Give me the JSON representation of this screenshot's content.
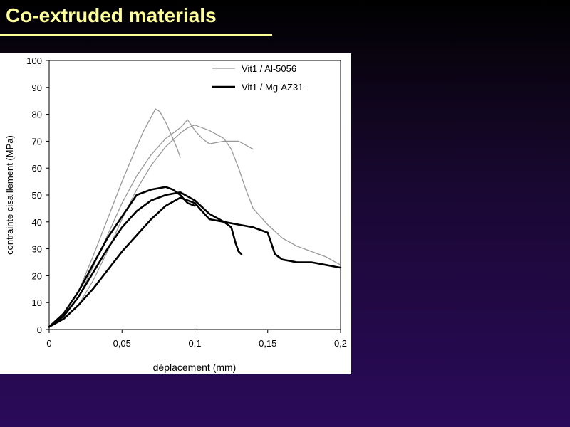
{
  "slide": {
    "title": "Co-extruded materials",
    "accent_color": "#ffff99"
  },
  "chart_data": {
    "type": "line",
    "xlabel": "déplacement (mm)",
    "ylabel": "contrainte cisaillement (MPa)",
    "xlim": [
      0,
      0.2
    ],
    "ylim": [
      0,
      100
    ],
    "x_ticks": [
      0,
      0.05,
      0.1,
      0.15,
      0.2
    ],
    "x_tick_labels": [
      "0",
      "0,05",
      "0,1",
      "0,15",
      "0,2"
    ],
    "y_ticks": [
      0,
      10,
      20,
      30,
      40,
      50,
      60,
      70,
      80,
      90,
      100
    ],
    "y_tick_labels": [
      "0",
      "10",
      "20",
      "30",
      "40",
      "50",
      "60",
      "70",
      "80",
      "90",
      "100"
    ],
    "grid": false,
    "legend_position": "top-right",
    "legend": [
      {
        "label": "Vit1 / Al-5056",
        "color": "#999999",
        "width": 1.3
      },
      {
        "label": "Vit1 / Mg-AZ31",
        "color": "#000000",
        "width": 2.6
      }
    ],
    "series": [
      {
        "group": 0,
        "points": [
          [
            0,
            1
          ],
          [
            0.01,
            6
          ],
          [
            0.02,
            14
          ],
          [
            0.03,
            27
          ],
          [
            0.04,
            41
          ],
          [
            0.05,
            55
          ],
          [
            0.06,
            68
          ],
          [
            0.065,
            74
          ],
          [
            0.07,
            79
          ],
          [
            0.073,
            82
          ],
          [
            0.076,
            81
          ],
          [
            0.08,
            77
          ],
          [
            0.085,
            71
          ],
          [
            0.088,
            67
          ],
          [
            0.09,
            64
          ]
        ]
      },
      {
        "group": 0,
        "points": [
          [
            0,
            1
          ],
          [
            0.01,
            5
          ],
          [
            0.02,
            12
          ],
          [
            0.03,
            23
          ],
          [
            0.04,
            35
          ],
          [
            0.05,
            47
          ],
          [
            0.06,
            57
          ],
          [
            0.07,
            65
          ],
          [
            0.08,
            71
          ],
          [
            0.09,
            75
          ],
          [
            0.095,
            78
          ],
          [
            0.1,
            74
          ],
          [
            0.105,
            71
          ],
          [
            0.11,
            69
          ],
          [
            0.12,
            70
          ],
          [
            0.13,
            70
          ],
          [
            0.14,
            67
          ]
        ]
      },
      {
        "group": 0,
        "points": [
          [
            0,
            1
          ],
          [
            0.01,
            4
          ],
          [
            0.02,
            9
          ],
          [
            0.03,
            18
          ],
          [
            0.04,
            29
          ],
          [
            0.05,
            41
          ],
          [
            0.06,
            52
          ],
          [
            0.07,
            61
          ],
          [
            0.08,
            68
          ],
          [
            0.09,
            73
          ],
          [
            0.095,
            75
          ],
          [
            0.1,
            76
          ],
          [
            0.11,
            74
          ],
          [
            0.12,
            71
          ],
          [
            0.125,
            67
          ],
          [
            0.13,
            60
          ],
          [
            0.135,
            52
          ],
          [
            0.14,
            45
          ],
          [
            0.15,
            39
          ],
          [
            0.16,
            34
          ],
          [
            0.17,
            31
          ],
          [
            0.18,
            29
          ],
          [
            0.19,
            27
          ],
          [
            0.2,
            24
          ]
        ]
      },
      {
        "group": 1,
        "points": [
          [
            0,
            1
          ],
          [
            0.01,
            6
          ],
          [
            0.02,
            14
          ],
          [
            0.03,
            24
          ],
          [
            0.04,
            34
          ],
          [
            0.05,
            42
          ],
          [
            0.055,
            46
          ],
          [
            0.06,
            50
          ],
          [
            0.07,
            52
          ],
          [
            0.08,
            53
          ],
          [
            0.085,
            52
          ],
          [
            0.09,
            50
          ],
          [
            0.095,
            47
          ],
          [
            0.1,
            46
          ]
        ]
      },
      {
        "group": 1,
        "points": [
          [
            0,
            1
          ],
          [
            0.01,
            5
          ],
          [
            0.02,
            12
          ],
          [
            0.03,
            21
          ],
          [
            0.04,
            30
          ],
          [
            0.05,
            38
          ],
          [
            0.06,
            44
          ],
          [
            0.07,
            48
          ],
          [
            0.08,
            50
          ],
          [
            0.09,
            51
          ],
          [
            0.1,
            48
          ],
          [
            0.11,
            43
          ],
          [
            0.12,
            40
          ],
          [
            0.125,
            38
          ],
          [
            0.128,
            32
          ],
          [
            0.13,
            29
          ],
          [
            0.132,
            28
          ]
        ]
      },
      {
        "group": 1,
        "points": [
          [
            0,
            1
          ],
          [
            0.01,
            4
          ],
          [
            0.02,
            9
          ],
          [
            0.03,
            15
          ],
          [
            0.04,
            22
          ],
          [
            0.05,
            29
          ],
          [
            0.06,
            35
          ],
          [
            0.07,
            41
          ],
          [
            0.08,
            46
          ],
          [
            0.09,
            49
          ],
          [
            0.1,
            47
          ],
          [
            0.105,
            44
          ],
          [
            0.11,
            41
          ],
          [
            0.12,
            40
          ],
          [
            0.13,
            39
          ],
          [
            0.14,
            38
          ],
          [
            0.15,
            36
          ],
          [
            0.155,
            28
          ],
          [
            0.16,
            26
          ],
          [
            0.17,
            25
          ],
          [
            0.18,
            25
          ],
          [
            0.19,
            24
          ],
          [
            0.2,
            23
          ]
        ]
      }
    ]
  }
}
